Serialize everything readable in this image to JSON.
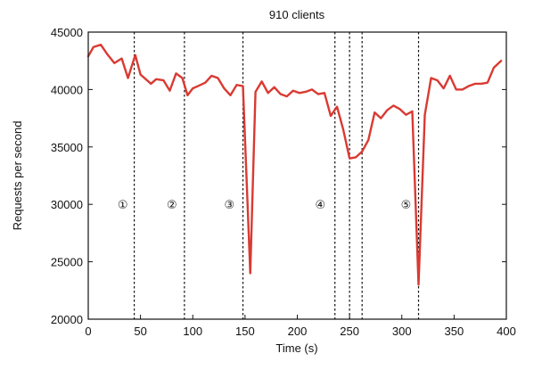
{
  "chart_data": {
    "type": "line",
    "title": "910 clients",
    "xlabel": "Time (s)",
    "ylabel": "Requests per second",
    "xlim": [
      0,
      400
    ],
    "ylim": [
      20000,
      45000
    ],
    "xticks": [
      0,
      50,
      100,
      150,
      200,
      250,
      300,
      350,
      400
    ],
    "yticks": [
      20000,
      25000,
      30000,
      35000,
      40000,
      45000
    ],
    "series": [
      {
        "name": "Requests per second",
        "color": "#d93a32",
        "x": [
          0,
          5,
          12,
          18,
          25,
          32,
          38,
          45,
          50,
          60,
          65,
          72,
          78,
          84,
          90,
          95,
          100,
          105,
          112,
          118,
          124,
          130,
          136,
          142,
          148,
          155,
          160,
          166,
          172,
          178,
          184,
          190,
          196,
          202,
          208,
          214,
          220,
          226,
          232,
          238,
          244,
          250,
          256,
          262,
          268,
          274,
          280,
          286,
          292,
          298,
          304,
          310,
          316,
          322,
          328,
          334,
          340,
          346,
          352,
          358,
          364,
          370,
          376,
          382,
          388,
          395
        ],
        "y": [
          42900,
          43700,
          43900,
          43100,
          42300,
          42700,
          41000,
          43000,
          41300,
          40500,
          40900,
          40800,
          39900,
          41400,
          41000,
          39500,
          40100,
          40300,
          40600,
          41200,
          41000,
          40100,
          39500,
          40400,
          40300,
          24000,
          39800,
          40700,
          39700,
          40200,
          39600,
          39400,
          39900,
          39700,
          39800,
          40000,
          39600,
          39700,
          37700,
          38500,
          36500,
          34000,
          34100,
          34600,
          35600,
          38000,
          37500,
          38200,
          38600,
          38300,
          37800,
          38100,
          23000,
          37800,
          41000,
          40800,
          40100,
          41200,
          40000,
          40000,
          40300,
          40500,
          40500,
          40600,
          41900,
          42500
        ]
      }
    ],
    "vlines": [
      44,
      92,
      148,
      236,
      250,
      262,
      316
    ],
    "phase_labels": [
      {
        "label": "①",
        "x": 33,
        "y": 30000
      },
      {
        "label": "②",
        "x": 80,
        "y": 30000
      },
      {
        "label": "③",
        "x": 135,
        "y": 30000
      },
      {
        "label": "④",
        "x": 222,
        "y": 30000
      },
      {
        "label": "⑤",
        "x": 304,
        "y": 30000
      }
    ]
  }
}
